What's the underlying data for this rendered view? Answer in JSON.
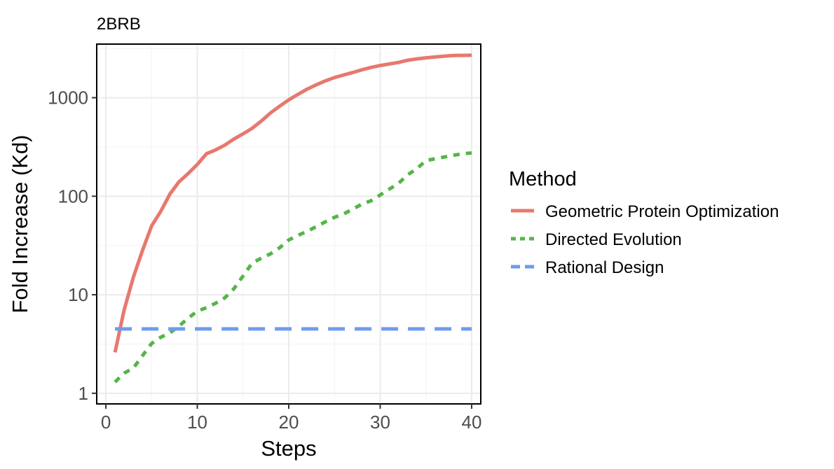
{
  "chart_data": {
    "type": "line",
    "title": "2BRB",
    "xlabel": "Steps",
    "ylabel": "Fold Increase (Kd)",
    "x_scale": "linear",
    "y_scale": "log10",
    "xlim": [
      -1,
      41
    ],
    "ylim": [
      0.78,
      3500
    ],
    "x_ticks": [
      0,
      10,
      20,
      30,
      40
    ],
    "y_ticks": [
      1,
      10,
      100,
      1000
    ],
    "x_tick_labels": [
      "0",
      "10",
      "20",
      "30",
      "40"
    ],
    "y_tick_labels": [
      "1",
      "10",
      "100",
      "1000"
    ],
    "grid": true,
    "legend_position": "right",
    "legend_title": "Method",
    "series": [
      {
        "name": "Geometric Protein Optimization",
        "color": "#E8786E",
        "line_style": "solid",
        "x": [
          1,
          2,
          3,
          4,
          5,
          6,
          7,
          8,
          9,
          10,
          11,
          12,
          13,
          14,
          15,
          16,
          17,
          18,
          19,
          20,
          21,
          22,
          23,
          24,
          25,
          26,
          27,
          28,
          29,
          30,
          31,
          32,
          33,
          34,
          35,
          36,
          37,
          38,
          39,
          40
        ],
        "values": [
          2.6,
          7,
          15,
          28,
          50,
          70,
          105,
          140,
          170,
          210,
          270,
          295,
          330,
          380,
          430,
          490,
          580,
          700,
          820,
          950,
          1080,
          1220,
          1350,
          1480,
          1600,
          1700,
          1800,
          1920,
          2030,
          2120,
          2200,
          2280,
          2400,
          2480,
          2540,
          2590,
          2640,
          2680,
          2690,
          2700
        ]
      },
      {
        "name": "Directed Evolution",
        "color": "#55B548",
        "line_style": "dotted",
        "x": [
          1,
          2,
          3,
          4,
          5,
          6,
          7,
          8,
          9,
          10,
          11,
          12,
          13,
          14,
          15,
          16,
          17,
          18,
          19,
          20,
          21,
          22,
          23,
          24,
          25,
          26,
          27,
          28,
          29,
          30,
          31,
          32,
          33,
          34,
          35,
          36,
          37,
          38,
          39,
          40
        ],
        "values": [
          1.3,
          1.6,
          1.8,
          2.4,
          3.2,
          3.7,
          4.1,
          4.8,
          5.8,
          6.8,
          7.4,
          8.2,
          9.3,
          11.5,
          15.5,
          21,
          23.5,
          26,
          30,
          36,
          40,
          44,
          49,
          55,
          61,
          66,
          74,
          83,
          90,
          103,
          118,
          135,
          165,
          190,
          230,
          240,
          250,
          260,
          270,
          275
        ]
      },
      {
        "name": "Rational Design",
        "color": "#6F9BF0",
        "line_style": "dashed",
        "x": [
          1,
          40
        ],
        "values": [
          4.5,
          4.5
        ]
      }
    ]
  }
}
